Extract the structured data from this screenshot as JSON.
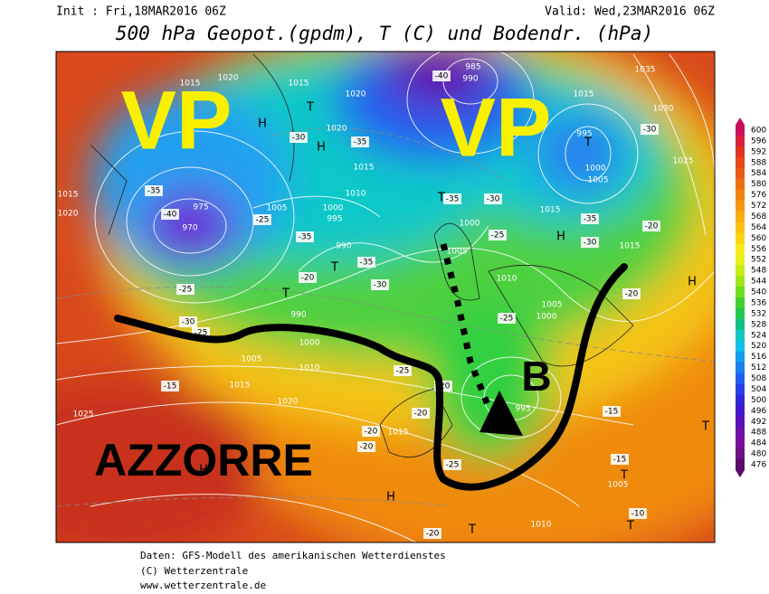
{
  "map": {
    "header": {
      "init": "Init : Fri,18MAR2016 06Z",
      "valid": "Valid: Wed,23MAR2016 06Z"
    },
    "title": "500 hPa Geopot.(gpdm), T (C) und Bodendr. (hPa)",
    "annotations": {
      "vp_left": "VP",
      "vp_right": "VP",
      "b": "B",
      "azzorre": "AZZORRE"
    },
    "labels": [
      "1015",
      "1020",
      "1015",
      "1020",
      "1020",
      "1015",
      "1010",
      "1005",
      "1000",
      "995",
      "990",
      "1000",
      "1005",
      "1010",
      "1005",
      "1000",
      "995",
      "990",
      "1000",
      "1005",
      "1010",
      "1015",
      "1020",
      "1025",
      "1015",
      "1010",
      "1005",
      "1015",
      "1015",
      "1035",
      "1030",
      "1025",
      "995",
      "1000",
      "1005",
      "1015",
      "985",
      "990",
      "1015",
      "1020",
      "975",
      "970",
      "-30",
      "-35",
      "-25",
      "-35",
      "-35",
      "-20",
      "-30",
      "-25",
      "-30",
      "-25",
      "-15",
      "-30",
      "-35",
      "-25",
      "-30",
      "-35",
      "-20",
      "-25",
      "-25",
      "-20",
      "-20",
      "-20",
      "-20",
      "-25",
      "-15",
      "-15",
      "-10",
      "-20",
      "-35",
      "-40",
      "-30",
      "-40",
      "-20",
      "H",
      "T",
      "H",
      "T",
      "T",
      "H",
      "T",
      "T",
      "H",
      "H",
      "H",
      "T",
      "T",
      "T",
      "T"
    ],
    "scale": {
      "ticks": [
        600,
        596,
        592,
        588,
        584,
        580,
        576,
        572,
        568,
        564,
        560,
        556,
        552,
        548,
        544,
        540,
        536,
        532,
        528,
        524,
        520,
        516,
        512,
        508,
        504,
        500,
        496,
        492,
        488,
        484,
        480,
        476
      ],
      "colors": [
        "#c8105a",
        "#d8203c",
        "#e03420",
        "#e44818",
        "#e85c14",
        "#ec7010",
        "#f0840c",
        "#f49810",
        "#f8ac10",
        "#fcc010",
        "#fcd414",
        "#f8e818",
        "#e8f018",
        "#c8ec18",
        "#a0e41c",
        "#70dc20",
        "#40d030",
        "#20c850",
        "#10c088",
        "#10c8c0",
        "#10c0e8",
        "#10a0f0",
        "#1880f0",
        "#2060f0",
        "#2840e8",
        "#3028d8",
        "#4418c8",
        "#5810b8",
        "#6c10a8",
        "#7a1098",
        "#6a1080",
        "#580c68"
      ]
    },
    "footer": [
      "Daten: GFS-Modell des amerikanischen Wetterdienstes",
      "(C) Wetterzentrale",
      "www.wetterzentrale.de"
    ]
  }
}
